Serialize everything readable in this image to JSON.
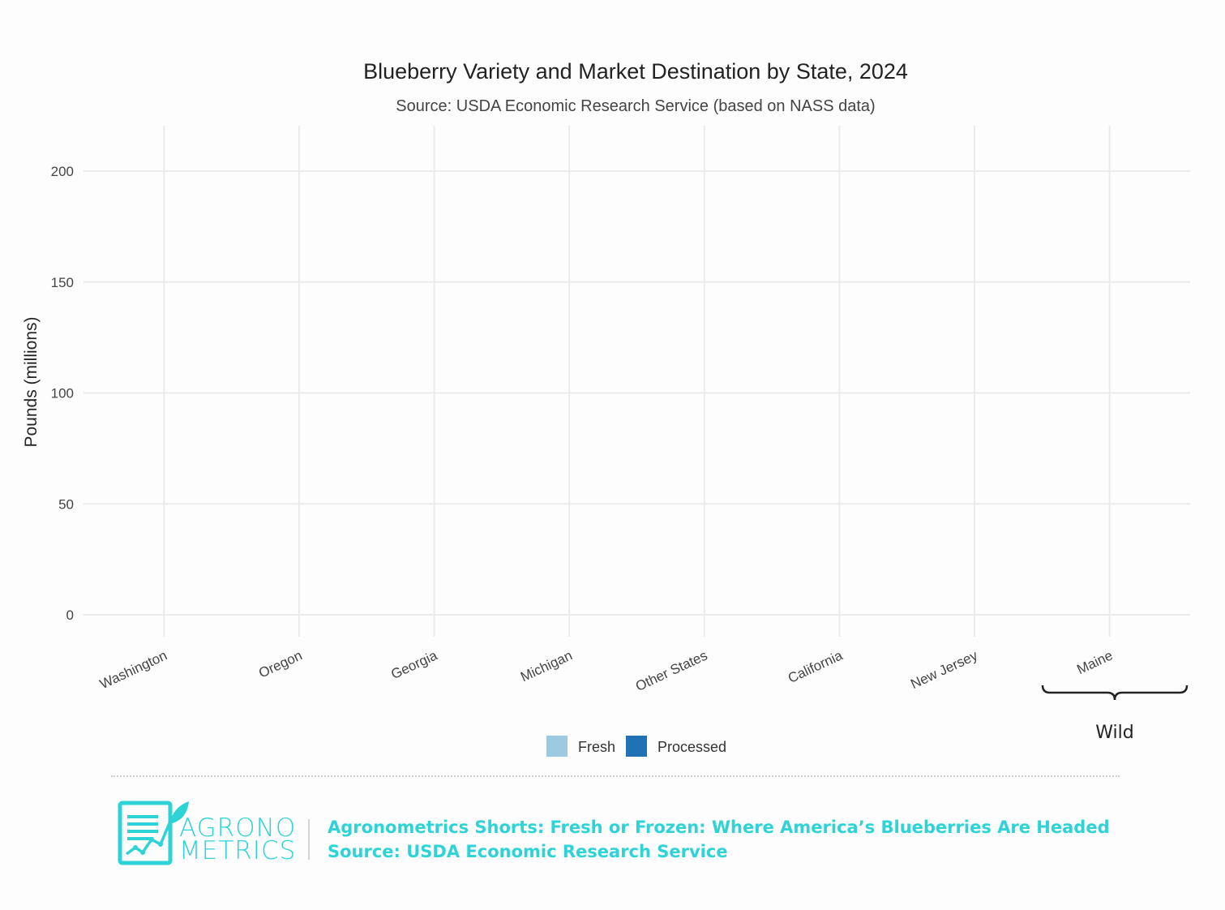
{
  "chart_data": {
    "type": "bar",
    "title": "Blueberry Variety and Market Destination by State, 2024",
    "subtitle": "Source: USDA Economic Research Service (based on NASS data)",
    "xlabel": "",
    "ylabel": "Pounds (millions)",
    "ylim": [
      0,
      200
    ],
    "yticks": [
      0,
      50,
      100,
      150,
      200
    ],
    "ytick_labels": [
      "0",
      "50",
      "100",
      "150",
      "200"
    ],
    "categories": [
      "Washington",
      "Oregon",
      "Georgia",
      "Michigan",
      "Other States",
      "California",
      "New Jersey",
      "Maine"
    ],
    "series": [
      {
        "name": "Fresh",
        "color": "#9ecae1",
        "values": [
          null,
          null,
          null,
          null,
          null,
          null,
          null,
          null
        ]
      },
      {
        "name": "Processed",
        "color": "#2171b5",
        "values": [
          null,
          null,
          null,
          null,
          null,
          null,
          null,
          null
        ]
      }
    ],
    "grid": true,
    "legend_position": "bottom",
    "annotation": "Wild"
  },
  "footer": {
    "logo_line1": "AGRONO",
    "logo_line2": "METRICS",
    "headline": "Agronometrics Shorts: Fresh or Frozen: Where America’s Blueberries Are Headed",
    "source": "Source: USDA Economic Research Service",
    "accent": "#2ed3d6"
  }
}
